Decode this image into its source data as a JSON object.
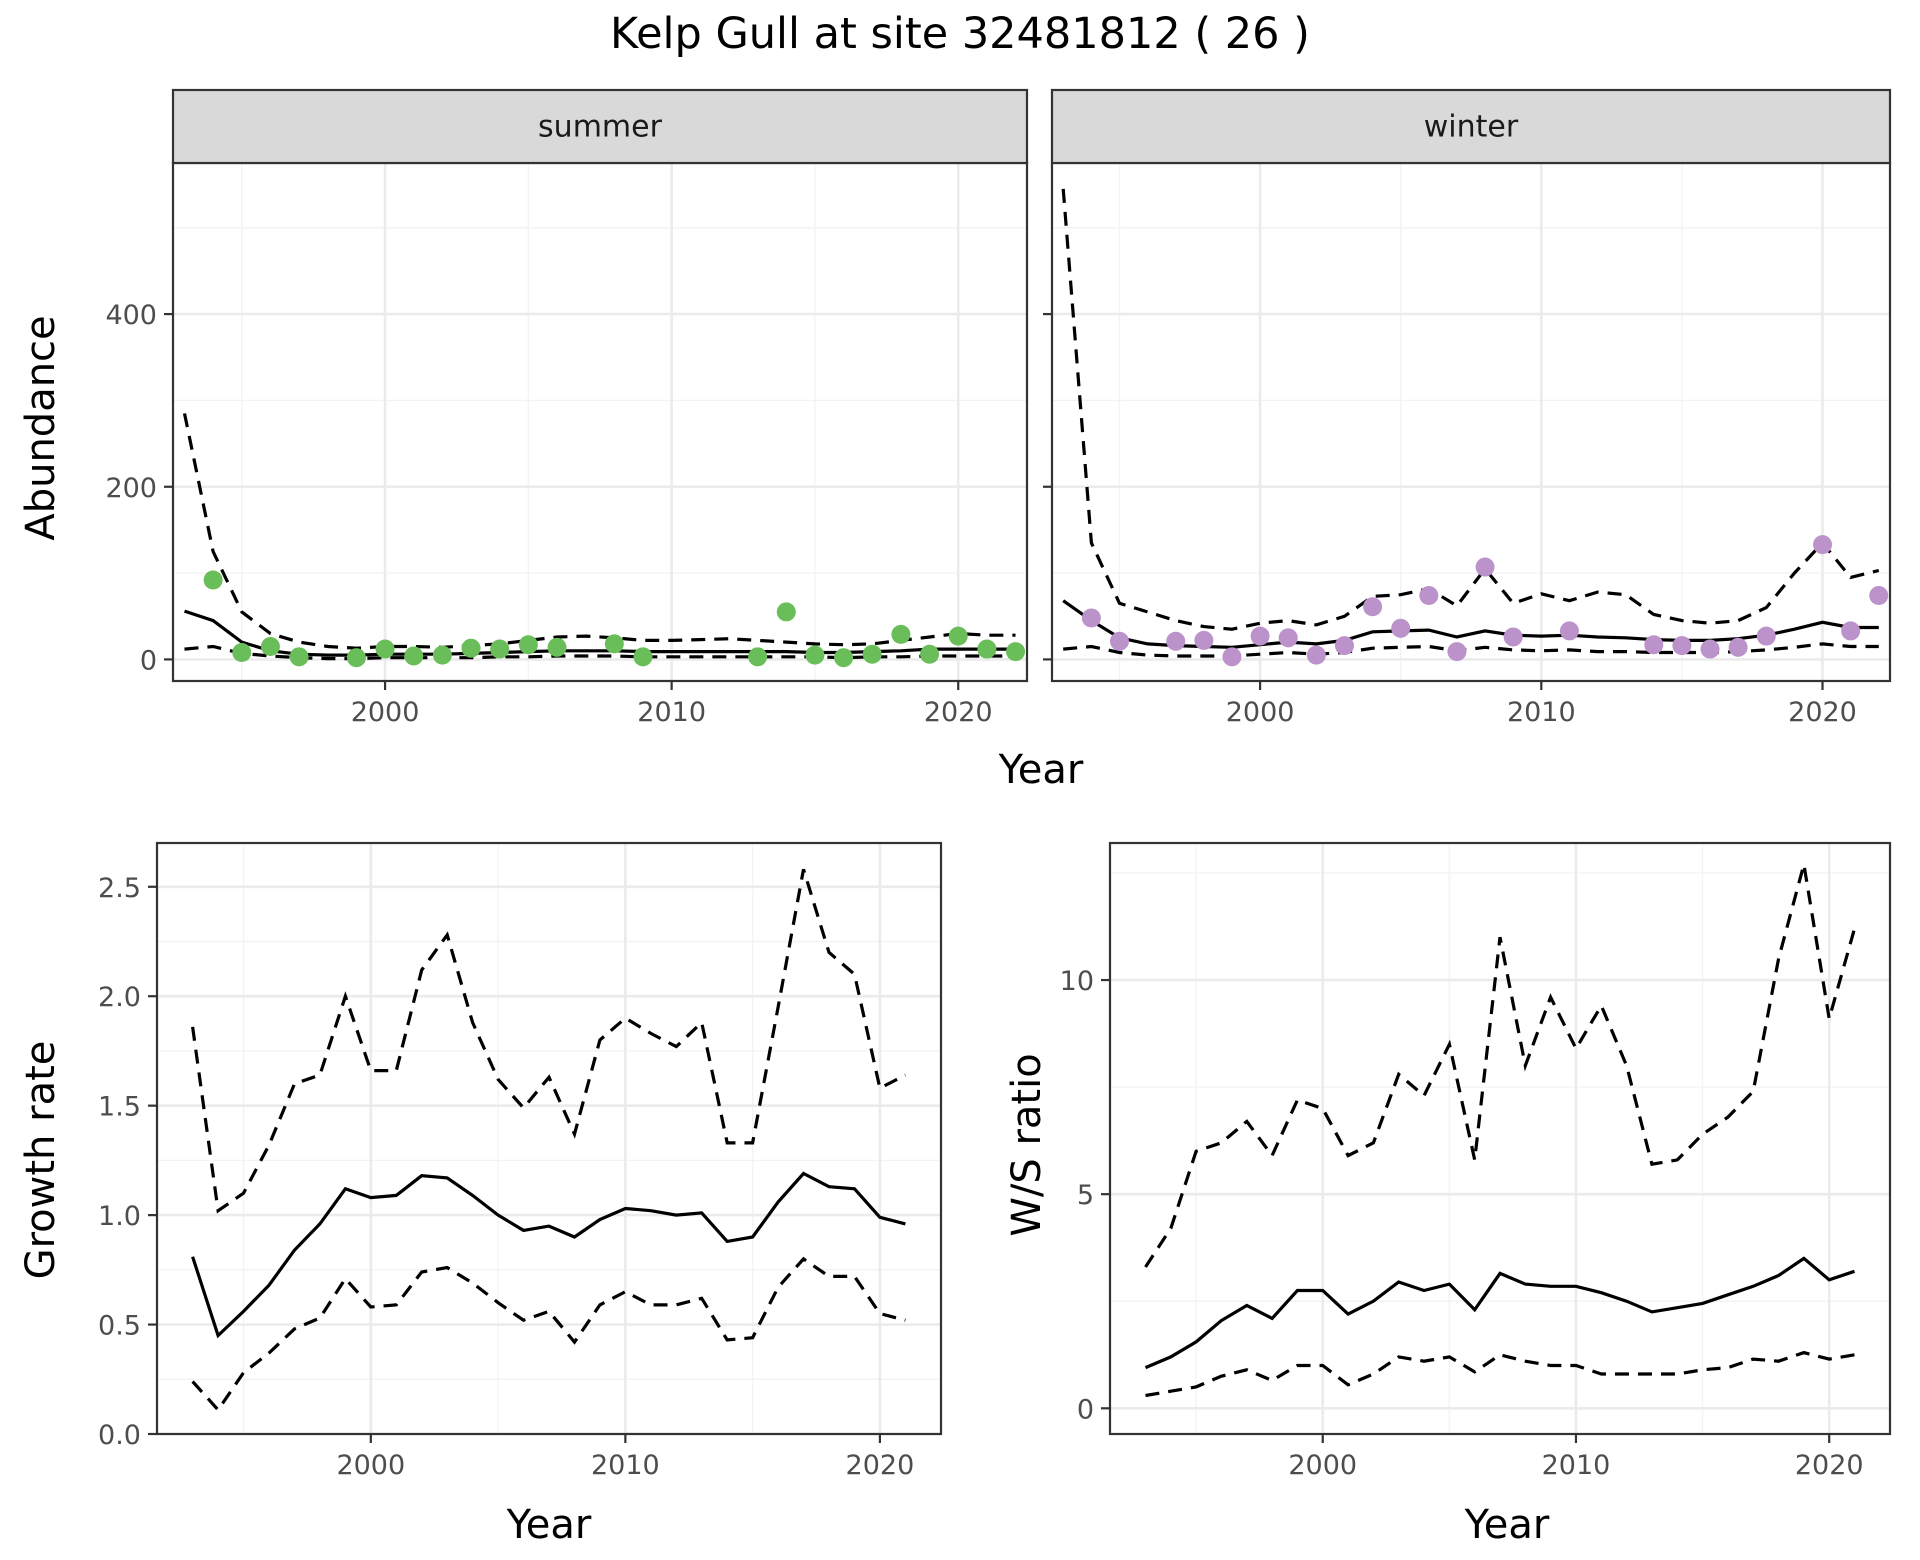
{
  "figure": {
    "title": "Kelp Gull at site 32481812 ( 26 )"
  },
  "colors": {
    "summer_points": "#6ABE59",
    "winter_points": "#BB92C9",
    "strip_fill": "#d9d9d9",
    "lines": "#000000"
  },
  "chart_data": [
    {
      "id": "summer",
      "type": "line",
      "strip_label": "summer",
      "xlabel": "",
      "ylabel": "Abundance",
      "xlim": [
        1992.6,
        2022.4
      ],
      "ylim": [
        -25,
        575
      ],
      "x_ticks": [
        2000,
        2010,
        2020
      ],
      "y_ticks": [
        0,
        200,
        400
      ],
      "grid": true,
      "points": {
        "x": [
          1994,
          1995,
          1996,
          1997,
          1999,
          2000,
          2001,
          2002,
          2003,
          2004,
          2005,
          2006,
          2008,
          2009,
          2013,
          2014,
          2015,
          2016,
          2017,
          2018,
          2019,
          2020,
          2021,
          2022
        ],
        "y": [
          92,
          8,
          15,
          3,
          2,
          12,
          4,
          5,
          13,
          12,
          17,
          14,
          18,
          3,
          3,
          55,
          5,
          2,
          6,
          29,
          6,
          27,
          12,
          9
        ]
      },
      "series": [
        {
          "style": "solid",
          "x": [
            1993,
            1994,
            1995,
            1996,
            1997,
            1998,
            1999,
            2000,
            2001,
            2002,
            2003,
            2004,
            2005,
            2006,
            2007,
            2008,
            2009,
            2010,
            2011,
            2012,
            2013,
            2014,
            2015,
            2016,
            2017,
            2018,
            2019,
            2020,
            2021,
            2022
          ],
          "y": [
            56,
            45,
            20,
            10,
            6,
            5,
            5,
            6,
            6,
            6,
            7,
            8,
            9,
            10,
            10,
            10,
            9,
            9,
            9,
            9,
            9,
            9,
            8,
            8,
            9,
            10,
            12,
            12,
            12,
            12
          ]
        },
        {
          "style": "dashed",
          "x": [
            1993,
            1994,
            1995,
            1996,
            1997,
            1998,
            1999,
            2000,
            2001,
            2002,
            2003,
            2004,
            2005,
            2006,
            2007,
            2008,
            2009,
            2010,
            2011,
            2012,
            2013,
            2014,
            2015,
            2016,
            2017,
            2018,
            2019,
            2020,
            2021,
            2022
          ],
          "y": [
            285,
            125,
            55,
            30,
            20,
            15,
            13,
            15,
            15,
            14,
            16,
            18,
            22,
            26,
            27,
            25,
            22,
            22,
            23,
            24,
            22,
            20,
            18,
            17,
            18,
            22,
            26,
            30,
            28,
            28
          ]
        },
        {
          "style": "dashed",
          "x": [
            1993,
            1994,
            1995,
            1996,
            1997,
            1998,
            1999,
            2000,
            2001,
            2002,
            2003,
            2004,
            2005,
            2006,
            2007,
            2008,
            2009,
            2010,
            2011,
            2012,
            2013,
            2014,
            2015,
            2016,
            2017,
            2018,
            2019,
            2020,
            2021,
            2022
          ],
          "y": [
            12,
            15,
            7,
            4,
            2,
            1,
            1,
            2,
            2,
            2,
            2,
            3,
            3,
            4,
            4,
            4,
            3,
            3,
            3,
            3,
            3,
            3,
            3,
            2,
            3,
            3,
            4,
            4,
            4,
            4
          ]
        }
      ]
    },
    {
      "id": "winter",
      "type": "line",
      "strip_label": "winter",
      "xlabel": "",
      "ylabel": "",
      "xlim": [
        1992.6,
        2022.4
      ],
      "ylim": [
        -25,
        575
      ],
      "x_ticks": [
        2000,
        2010,
        2020
      ],
      "y_ticks": [
        0,
        200,
        400
      ],
      "grid": true,
      "points": {
        "x": [
          1994,
          1995,
          1997,
          1998,
          1999,
          2000,
          2001,
          2002,
          2003,
          2004,
          2005,
          2006,
          2007,
          2008,
          2009,
          2011,
          2014,
          2015,
          2016,
          2017,
          2018,
          2020,
          2021,
          2022
        ],
        "y": [
          48,
          21,
          21,
          22,
          3,
          27,
          25,
          5,
          16,
          61,
          36,
          74,
          9,
          107,
          26,
          33,
          17,
          16,
          12,
          14,
          27,
          133,
          33,
          74
        ]
      },
      "series": [
        {
          "style": "solid",
          "x": [
            1993,
            1994,
            1995,
            1996,
            1997,
            1998,
            1999,
            2000,
            2001,
            2002,
            2003,
            2004,
            2005,
            2006,
            2007,
            2008,
            2009,
            2010,
            2011,
            2012,
            2013,
            2014,
            2015,
            2016,
            2017,
            2018,
            2019,
            2020,
            2021,
            2022
          ],
          "y": [
            68,
            45,
            25,
            18,
            16,
            15,
            14,
            17,
            20,
            18,
            22,
            32,
            33,
            34,
            26,
            33,
            28,
            27,
            28,
            26,
            25,
            23,
            22,
            22,
            24,
            28,
            35,
            43,
            37,
            37
          ]
        },
        {
          "style": "dashed",
          "x": [
            1993,
            1994,
            1995,
            1996,
            1997,
            1998,
            1999,
            2000,
            2001,
            2002,
            2003,
            2004,
            2005,
            2006,
            2007,
            2008,
            2009,
            2010,
            2011,
            2012,
            2013,
            2014,
            2015,
            2016,
            2017,
            2018,
            2019,
            2020,
            2021,
            2022
          ],
          "y": [
            545,
            135,
            65,
            55,
            45,
            38,
            35,
            42,
            45,
            40,
            50,
            73,
            75,
            82,
            62,
            105,
            65,
            76,
            68,
            78,
            75,
            52,
            45,
            42,
            45,
            60,
            100,
            135,
            95,
            103
          ]
        },
        {
          "style": "dashed",
          "x": [
            1993,
            1994,
            1995,
            1996,
            1997,
            1998,
            1999,
            2000,
            2001,
            2002,
            2003,
            2004,
            2005,
            2006,
            2007,
            2008,
            2009,
            2010,
            2011,
            2012,
            2013,
            2014,
            2015,
            2016,
            2017,
            2018,
            2019,
            2020,
            2021,
            2022
          ],
          "y": [
            12,
            15,
            8,
            5,
            4,
            4,
            4,
            6,
            8,
            6,
            8,
            13,
            14,
            15,
            10,
            14,
            11,
            10,
            11,
            9,
            9,
            8,
            8,
            8,
            9,
            11,
            14,
            18,
            15,
            15
          ]
        }
      ]
    },
    {
      "id": "growth",
      "type": "line",
      "xlabel": "Year",
      "ylabel": "Growth rate",
      "xlim": [
        1991.6,
        2022.4
      ],
      "ylim": [
        0,
        2.7
      ],
      "x_ticks": [
        2000,
        2010,
        2020
      ],
      "y_ticks": [
        0.0,
        0.5,
        1.0,
        1.5,
        2.0,
        2.5
      ],
      "y_tick_labels": [
        "0.0",
        "0.5",
        "1.0",
        "1.5",
        "2.0",
        "2.5"
      ],
      "grid": true,
      "series": [
        {
          "style": "solid",
          "x": [
            1993,
            1994,
            1995,
            1996,
            1997,
            1998,
            1999,
            2000,
            2001,
            2002,
            2003,
            2004,
            2005,
            2006,
            2007,
            2008,
            2009,
            2010,
            2011,
            2012,
            2013,
            2014,
            2015,
            2016,
            2017,
            2018,
            2019,
            2020,
            2021
          ],
          "y": [
            0.81,
            0.45,
            0.56,
            0.68,
            0.84,
            0.96,
            1.12,
            1.08,
            1.09,
            1.18,
            1.17,
            1.09,
            1.0,
            0.93,
            0.95,
            0.9,
            0.98,
            1.03,
            1.02,
            1.0,
            1.01,
            0.88,
            0.9,
            1.06,
            1.19,
            1.13,
            1.12,
            0.99,
            0.96
          ]
        },
        {
          "style": "dashed",
          "x": [
            1993,
            1994,
            1995,
            1996,
            1997,
            1998,
            1999,
            2000,
            2001,
            2002,
            2003,
            2004,
            2005,
            2006,
            2007,
            2008,
            2009,
            2010,
            2011,
            2012,
            2013,
            2014,
            2015,
            2016,
            2017,
            2018,
            2019,
            2020,
            2021
          ],
          "y": [
            1.86,
            1.02,
            1.1,
            1.32,
            1.6,
            1.64,
            2.0,
            1.66,
            1.66,
            2.12,
            2.28,
            1.88,
            1.62,
            1.49,
            1.63,
            1.37,
            1.8,
            1.9,
            1.83,
            1.77,
            1.88,
            1.33,
            1.33,
            1.95,
            2.58,
            2.2,
            2.1,
            1.58,
            1.64
          ]
        },
        {
          "style": "dashed",
          "x": [
            1993,
            1994,
            1995,
            1996,
            1997,
            1998,
            1999,
            2000,
            2001,
            2002,
            2003,
            2004,
            2005,
            2006,
            2007,
            2008,
            2009,
            2010,
            2011,
            2012,
            2013,
            2014,
            2015,
            2016,
            2017,
            2018,
            2019,
            2020,
            2021
          ],
          "y": [
            0.24,
            0.11,
            0.28,
            0.37,
            0.48,
            0.53,
            0.71,
            0.58,
            0.59,
            0.74,
            0.76,
            0.69,
            0.6,
            0.52,
            0.56,
            0.42,
            0.59,
            0.65,
            0.59,
            0.59,
            0.62,
            0.43,
            0.44,
            0.67,
            0.8,
            0.72,
            0.72,
            0.55,
            0.52
          ]
        }
      ]
    },
    {
      "id": "ratio",
      "type": "line",
      "xlabel": "Year",
      "ylabel": "W/S ratio",
      "xlim": [
        1991.6,
        2022.4
      ],
      "ylim": [
        -0.6,
        13.2
      ],
      "x_ticks": [
        2000,
        2010,
        2020
      ],
      "y_ticks": [
        0,
        5,
        10
      ],
      "grid": true,
      "series": [
        {
          "style": "solid",
          "x": [
            1993,
            1994,
            1995,
            1996,
            1997,
            1998,
            1999,
            2000,
            2001,
            2002,
            2003,
            2004,
            2005,
            2006,
            2007,
            2008,
            2009,
            2010,
            2011,
            2012,
            2013,
            2014,
            2015,
            2016,
            2017,
            2018,
            2019,
            2020,
            2021
          ],
          "y": [
            0.95,
            1.2,
            1.55,
            2.05,
            2.4,
            2.1,
            2.75,
            2.75,
            2.2,
            2.5,
            2.95,
            2.75,
            2.9,
            2.3,
            3.15,
            2.9,
            2.85,
            2.85,
            2.7,
            2.5,
            2.25,
            2.35,
            2.45,
            2.65,
            2.85,
            3.1,
            3.5,
            3.0,
            3.2
          ]
        },
        {
          "style": "dashed",
          "x": [
            1993,
            1994,
            1995,
            1996,
            1997,
            1998,
            1999,
            2000,
            2001,
            2002,
            2003,
            2004,
            2005,
            2006,
            2007,
            2008,
            2009,
            2010,
            2011,
            2012,
            2013,
            2014,
            2015,
            2016,
            2017,
            2018,
            2019,
            2020,
            2021
          ],
          "y": [
            3.3,
            4.2,
            6.0,
            6.2,
            6.7,
            5.9,
            7.2,
            7.0,
            5.9,
            6.2,
            7.8,
            7.3,
            8.5,
            5.8,
            11.0,
            8.0,
            9.6,
            8.4,
            9.4,
            8.0,
            5.7,
            5.8,
            6.4,
            6.8,
            7.4,
            10.5,
            12.7,
            9.1,
            11.2
          ]
        },
        {
          "style": "dashed",
          "x": [
            1993,
            1994,
            1995,
            1996,
            1997,
            1998,
            1999,
            2000,
            2001,
            2002,
            2003,
            2004,
            2005,
            2006,
            2007,
            2008,
            2009,
            2010,
            2011,
            2012,
            2013,
            2014,
            2015,
            2016,
            2017,
            2018,
            2019,
            2020,
            2021
          ],
          "y": [
            0.3,
            0.4,
            0.5,
            0.75,
            0.9,
            0.65,
            1.0,
            1.0,
            0.55,
            0.8,
            1.2,
            1.1,
            1.2,
            0.85,
            1.25,
            1.1,
            1.0,
            1.0,
            0.8,
            0.8,
            0.8,
            0.8,
            0.9,
            0.95,
            1.15,
            1.1,
            1.3,
            1.15,
            1.25
          ]
        }
      ]
    }
  ],
  "shared_labels": {
    "top_xlabel": "Year"
  }
}
